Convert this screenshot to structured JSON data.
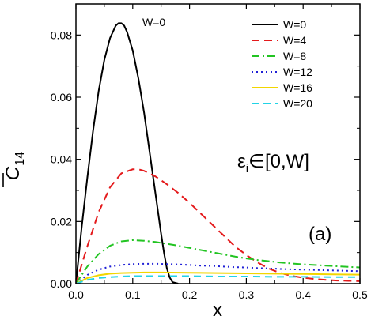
{
  "chart_data": {
    "type": "line",
    "xlabel": "x",
    "ylabel_main": "C",
    "ylabel_sub": "14",
    "xlim": [
      0.0,
      0.5
    ],
    "ylim": [
      0.0,
      0.09
    ],
    "xticks": [
      0.0,
      0.1,
      0.2,
      0.3,
      0.4,
      0.5
    ],
    "xtick_labels": [
      "0.0",
      "0.1",
      "0.2",
      "0.3",
      "0.4",
      "0.5"
    ],
    "yticks": [
      0.0,
      0.02,
      0.04,
      0.06,
      0.08
    ],
    "ytick_labels": [
      "0.00",
      "0.02",
      "0.04",
      "0.06",
      "0.08"
    ],
    "annotations": {
      "top_label": "W=0",
      "eps_main": "ε",
      "eps_sub": "i",
      "eps_rest": "∈[0,W]",
      "panel": "(a)"
    },
    "legend_position": "top-right",
    "series": [
      {
        "name": "W=0",
        "color": "#000000",
        "dash": "solid",
        "x": [
          0.0,
          0.01,
          0.02,
          0.03,
          0.04,
          0.05,
          0.06,
          0.07,
          0.075,
          0.08,
          0.085,
          0.09,
          0.1,
          0.11,
          0.12,
          0.13,
          0.14,
          0.15,
          0.155,
          0.16,
          0.165,
          0.17,
          0.18
        ],
        "y": [
          0.0,
          0.018,
          0.034,
          0.049,
          0.062,
          0.072,
          0.079,
          0.083,
          0.0838,
          0.0838,
          0.083,
          0.081,
          0.075,
          0.066,
          0.055,
          0.042,
          0.029,
          0.016,
          0.01,
          0.005,
          0.002,
          0.0005,
          0.0
        ]
      },
      {
        "name": "W=4",
        "color": "#e41a1c",
        "dash": "10,6",
        "x": [
          0.0,
          0.02,
          0.04,
          0.06,
          0.08,
          0.1,
          0.11,
          0.12,
          0.14,
          0.16,
          0.18,
          0.2,
          0.22,
          0.24,
          0.26,
          0.28,
          0.3,
          0.32,
          0.34,
          0.36,
          0.38,
          0.4,
          0.42,
          0.44,
          0.46,
          0.48,
          0.5
        ],
        "y": [
          0.0,
          0.012,
          0.023,
          0.031,
          0.0355,
          0.0368,
          0.0368,
          0.0363,
          0.0345,
          0.032,
          0.0292,
          0.026,
          0.0225,
          0.019,
          0.0155,
          0.012,
          0.0092,
          0.0068,
          0.0048,
          0.0034,
          0.0025,
          0.0019,
          0.0015,
          0.0012,
          0.001,
          0.0009,
          0.0008
        ]
      },
      {
        "name": "W=8",
        "color": "#22c422",
        "dash": "10,4,2,4",
        "x": [
          0.0,
          0.02,
          0.04,
          0.06,
          0.08,
          0.1,
          0.12,
          0.14,
          0.16,
          0.18,
          0.2,
          0.22,
          0.24,
          0.26,
          0.28,
          0.3,
          0.32,
          0.34,
          0.36,
          0.38,
          0.4,
          0.42,
          0.44,
          0.46,
          0.48,
          0.5
        ],
        "y": [
          0.0,
          0.0055,
          0.0095,
          0.0122,
          0.0136,
          0.014,
          0.0138,
          0.0134,
          0.0128,
          0.0122,
          0.0115,
          0.0108,
          0.0101,
          0.0094,
          0.0087,
          0.0081,
          0.0076,
          0.0072,
          0.0068,
          0.0065,
          0.0062,
          0.006,
          0.0058,
          0.0056,
          0.0054,
          0.0052
        ]
      },
      {
        "name": "W=12",
        "color": "#1f1fd6",
        "dash": "2,4",
        "x": [
          0.0,
          0.02,
          0.04,
          0.06,
          0.08,
          0.1,
          0.12,
          0.14,
          0.16,
          0.18,
          0.2,
          0.22,
          0.24,
          0.26,
          0.28,
          0.3,
          0.32,
          0.34,
          0.36,
          0.38,
          0.4,
          0.42,
          0.44,
          0.46,
          0.48,
          0.5
        ],
        "y": [
          0.0,
          0.0028,
          0.0045,
          0.0055,
          0.006,
          0.0063,
          0.0064,
          0.0064,
          0.0063,
          0.0062,
          0.006,
          0.0058,
          0.0057,
          0.0055,
          0.0053,
          0.0052,
          0.005,
          0.0049,
          0.0047,
          0.0046,
          0.0045,
          0.0044,
          0.0043,
          0.0042,
          0.0041,
          0.004
        ]
      },
      {
        "name": "W=16",
        "color": "#f2d600",
        "dash": "solid",
        "x": [
          0.0,
          0.02,
          0.04,
          0.06,
          0.08,
          0.1,
          0.12,
          0.15,
          0.2,
          0.25,
          0.3,
          0.35,
          0.4,
          0.45,
          0.5
        ],
        "y": [
          0.0,
          0.0018,
          0.0027,
          0.0032,
          0.0034,
          0.0035,
          0.0036,
          0.0036,
          0.0035,
          0.0034,
          0.0033,
          0.0032,
          0.0031,
          0.003,
          0.0029
        ]
      },
      {
        "name": "W=20",
        "color": "#22d3e6",
        "dash": "9,6",
        "x": [
          0.0,
          0.02,
          0.04,
          0.06,
          0.08,
          0.1,
          0.12,
          0.15,
          0.2,
          0.25,
          0.3,
          0.35,
          0.4,
          0.45,
          0.5
        ],
        "y": [
          0.0,
          0.0012,
          0.0018,
          0.0021,
          0.0023,
          0.0024,
          0.0024,
          0.0024,
          0.0024,
          0.0023,
          0.0023,
          0.0022,
          0.0022,
          0.0021,
          0.0021
        ]
      }
    ]
  }
}
